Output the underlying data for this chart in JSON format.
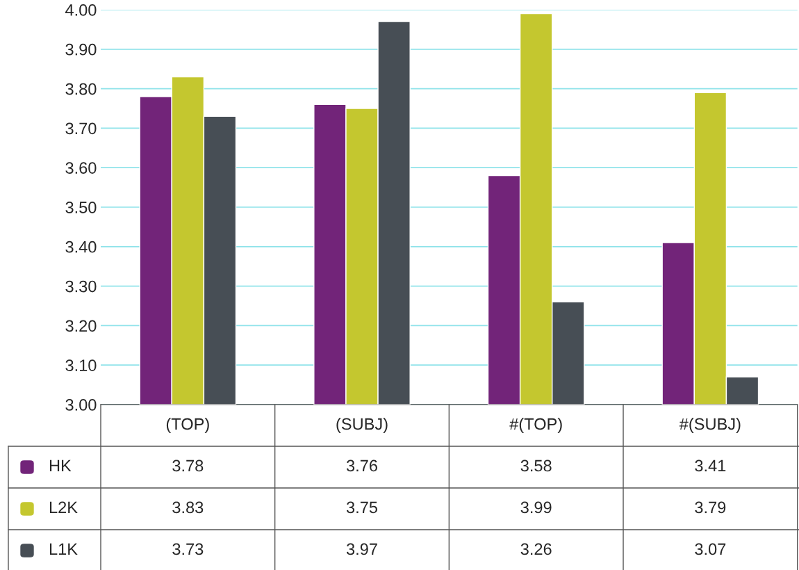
{
  "chart_data": {
    "type": "bar",
    "categories": [
      "(TOP)",
      "(SUBJ)",
      "#(TOP)",
      "#(SUBJ)"
    ],
    "series": [
      {
        "name": "HK",
        "color": "#722479",
        "values": [
          3.78,
          3.76,
          3.58,
          3.41
        ]
      },
      {
        "name": "L2K",
        "color": "#c4c72f",
        "values": [
          3.83,
          3.75,
          3.99,
          3.79
        ]
      },
      {
        "name": "L1K",
        "color": "#474e55",
        "values": [
          3.73,
          3.97,
          3.26,
          3.07
        ]
      }
    ],
    "ylim": [
      3.0,
      4.0
    ],
    "yticks": [
      {
        "value": 3.0,
        "label": "3.00"
      },
      {
        "value": 3.1,
        "label": "3.10"
      },
      {
        "value": 3.2,
        "label": "3.20"
      },
      {
        "value": 3.3,
        "label": "3.30"
      },
      {
        "value": 3.4,
        "label": "3.40"
      },
      {
        "value": 3.5,
        "label": "3.50"
      },
      {
        "value": 3.6,
        "label": "3.60"
      },
      {
        "value": 3.7,
        "label": "3.70"
      },
      {
        "value": 3.8,
        "label": "3.80"
      },
      {
        "value": 3.9,
        "label": "3.90"
      },
      {
        "value": 4.0,
        "label": "4.00"
      }
    ],
    "grid": "y",
    "data_labels": true,
    "legend": "bottom"
  }
}
